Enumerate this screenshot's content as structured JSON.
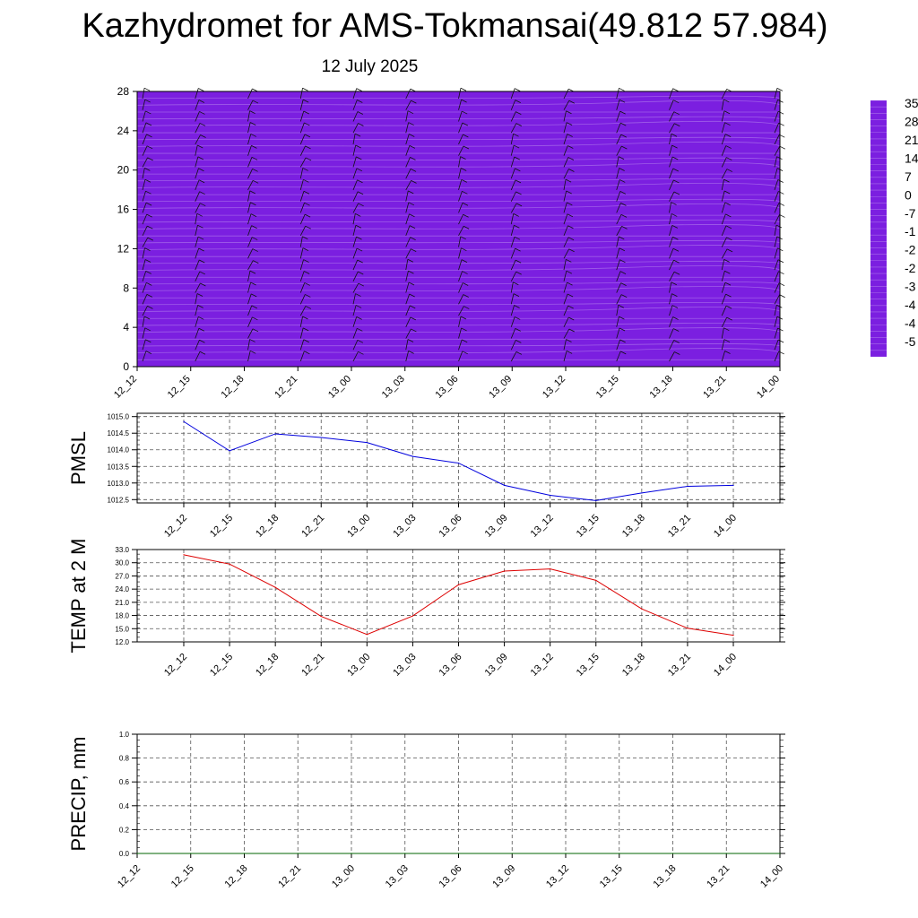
{
  "header": {
    "title": "Kazhydromet for AMS-Tokmansai(49.812 57.984)",
    "subtitle": "12 July 2025"
  },
  "chart_data": [
    {
      "type": "heatmap",
      "name": "temperature-wind-cross-section",
      "x_tick_labels": [
        "12_12",
        "12_15",
        "12_18",
        "12_21",
        "13_00",
        "13_03",
        "13_06",
        "13_09",
        "13_12",
        "13_15",
        "13_18",
        "13_21",
        "14_00"
      ],
      "y_ticks": [
        0,
        4,
        8,
        12,
        16,
        20,
        24,
        28
      ],
      "ylim": [
        0,
        28
      ],
      "colorbar_labels": [
        "35",
        "28",
        "21",
        "14",
        "7",
        "0",
        "-7",
        "-1",
        "-2",
        "-2",
        "-3",
        "-4",
        "-4",
        "-5"
      ],
      "color_stops": [
        "#7b1fe0",
        "#3a22f0",
        "#2a6cf0",
        "#22b8f0",
        "#e6f4ff",
        "#ffee44",
        "#ffc020",
        "#ff8a10",
        "#ff4a10",
        "#f01010",
        "#e01818",
        "#e05555"
      ],
      "wind_barbs": true
    },
    {
      "type": "line",
      "name": "pmsl",
      "ylabel": "PMSL",
      "color": "#0000dd",
      "x": [
        "12_12",
        "12_15",
        "12_18",
        "12_21",
        "13_00",
        "13_03",
        "13_06",
        "13_09",
        "13_12",
        "13_15",
        "13_18",
        "13_21",
        "14_00"
      ],
      "values": [
        1014.85,
        1013.97,
        1014.48,
        1014.37,
        1014.22,
        1013.8,
        1013.6,
        1012.93,
        1012.63,
        1012.47,
        1012.7,
        1012.9,
        1012.93
      ],
      "ylim": [
        1012.4,
        1015.1
      ],
      "y_ticks": [
        "1012.5",
        "1013.0",
        "1013.5",
        "1014.0",
        "1014.5",
        "1015.0"
      ],
      "grid": true
    },
    {
      "type": "line",
      "name": "temp-2m",
      "ylabel": "TEMP at 2 M",
      "color": "#dd0000",
      "x": [
        "12_12",
        "12_15",
        "12_18",
        "12_21",
        "13_00",
        "13_03",
        "13_06",
        "13_09",
        "13_12",
        "13_15",
        "13_18",
        "13_21",
        "14_00"
      ],
      "values": [
        31.8,
        29.7,
        24.4,
        17.8,
        13.7,
        17.9,
        25.0,
        28.1,
        28.6,
        26.0,
        19.5,
        15.1,
        13.5
      ],
      "ylim": [
        12,
        33
      ],
      "y_ticks": [
        "12.0",
        "15.0",
        "18.0",
        "21.0",
        "24.0",
        "27.0",
        "30.0",
        "33.0"
      ],
      "grid": true
    },
    {
      "type": "line",
      "name": "precip",
      "ylabel": "PRECIP, mm",
      "color": "#006600",
      "x": [
        "12_12",
        "12_15",
        "12_18",
        "12_21",
        "13_00",
        "13_03",
        "13_06",
        "13_09",
        "13_12",
        "13_15",
        "13_18",
        "13_21",
        "14_00"
      ],
      "values": [
        0,
        0,
        0,
        0,
        0,
        0,
        0,
        0,
        0,
        0,
        0,
        0,
        0
      ],
      "ylim": [
        0,
        1
      ],
      "y_ticks": [
        "0.0",
        "0.2",
        "0.4",
        "0.6",
        "0.8",
        "1.0"
      ],
      "grid": true
    }
  ]
}
